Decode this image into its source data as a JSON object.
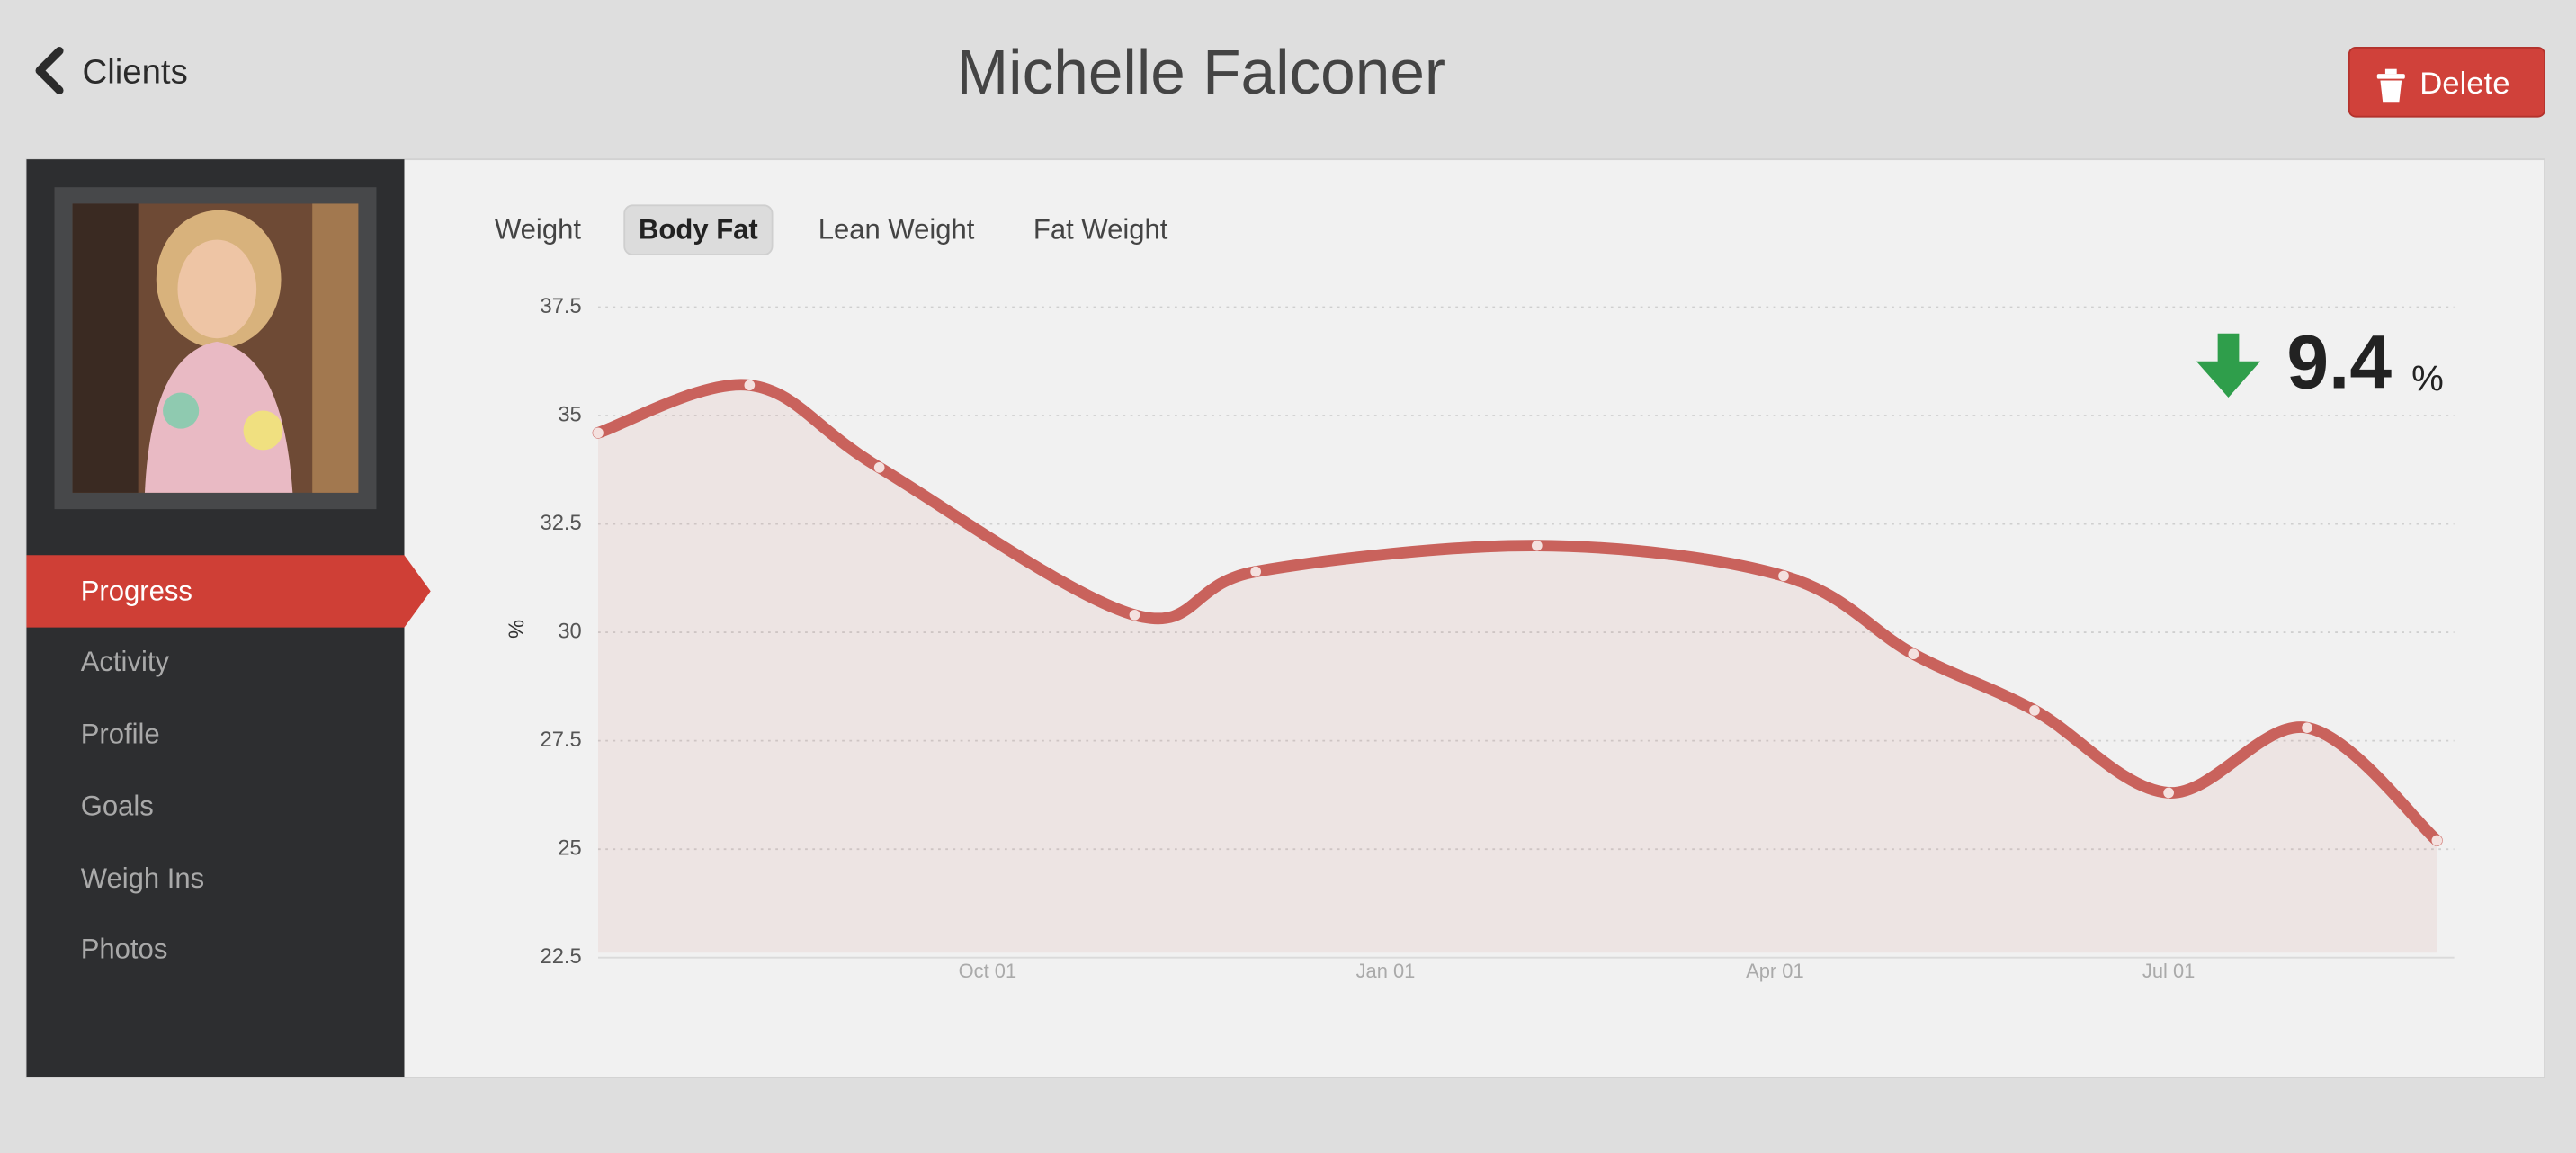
{
  "header": {
    "back": "Clients",
    "title": "Michelle Falconer",
    "delete": "Delete"
  },
  "sidebar": {
    "nav": [
      "Progress",
      "Activity",
      "Profile",
      "Goals",
      "Weigh Ins",
      "Photos"
    ]
  },
  "tabs": [
    "Weight",
    "Body Fat",
    "Lean Weight",
    "Fat Weight"
  ],
  "chart_data": {
    "type": "line",
    "y_label": "%",
    "x": [
      "Jul 03",
      "Aug 07",
      "Sep 06",
      "Nov 04",
      "Dec 02",
      "Feb 05",
      "Apr 03",
      "May 03",
      "May 31",
      "Jul 01",
      "Aug 02",
      "Sep 01"
    ],
    "values": [
      34.6,
      35.7,
      33.8,
      30.4,
      31.4,
      32.0,
      31.3,
      29.5,
      28.2,
      26.3,
      27.8,
      25.2
    ],
    "color": "#c9625c",
    "xlim": [
      "Jul 03",
      "Sep 05"
    ],
    "xticks": [
      "Oct 01",
      "Jan 01",
      "Apr 01",
      "Jul 01"
    ],
    "ylim": [
      22.5,
      37.5
    ],
    "yticks": [
      22.5,
      25,
      27.5,
      30,
      32.5,
      35,
      37.5
    ],
    "grid": true,
    "change": {
      "value": "9.4",
      "unit": "%"
    }
  }
}
